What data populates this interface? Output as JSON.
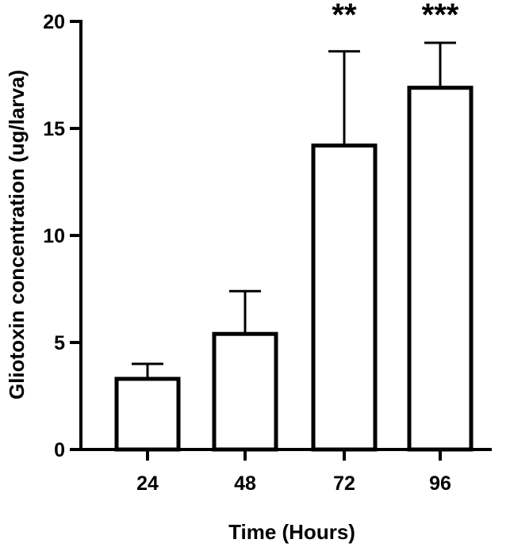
{
  "chart_data": {
    "type": "bar",
    "categories": [
      "24",
      "48",
      "72",
      "96"
    ],
    "values": [
      3.3,
      5.4,
      14.2,
      16.9
    ],
    "error_upper": [
      4.0,
      7.4,
      18.6,
      19.0
    ],
    "significance": [
      "",
      "",
      "**",
      "***"
    ],
    "xlabel": "Time (Hours)",
    "ylabel": "Gliotoxin concentration (ug/larva)",
    "ylim": [
      0,
      20
    ],
    "yticks": [
      "0",
      "5",
      "10",
      "15",
      "20"
    ],
    "grid": false,
    "legend": "none",
    "colors": {
      "bar_fill": "#ffffff",
      "stroke": "#000000"
    }
  }
}
